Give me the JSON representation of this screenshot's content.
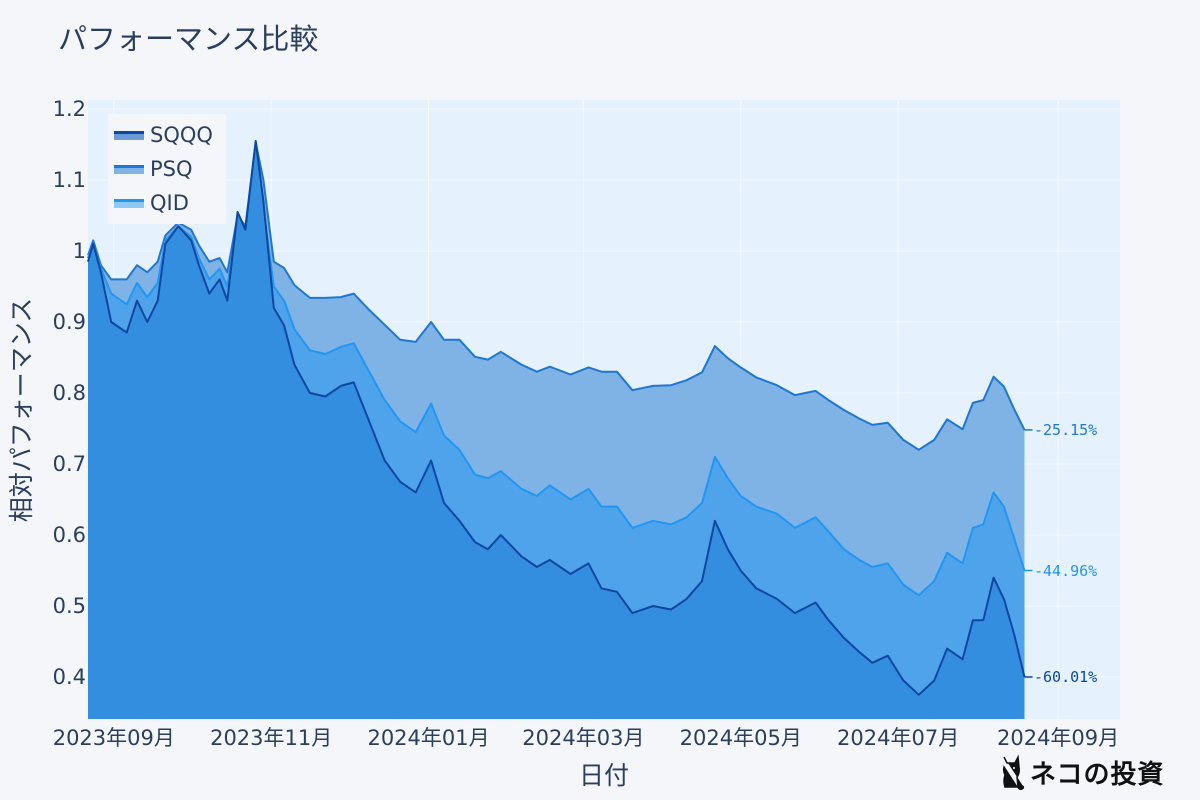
{
  "title": "パフォーマンス比較",
  "chart_data": {
    "type": "area",
    "title": "パフォーマンス比較",
    "xlabel": "日付",
    "ylabel": "相対パフォーマンス",
    "y_ticks": [
      "1.2",
      "1.1",
      "1",
      "0.9",
      "0.8",
      "0.7",
      "0.6",
      "0.5",
      "0.4"
    ],
    "x_ticks": [
      "2023年09月",
      "2023年11月",
      "2024年01月",
      "2024年03月",
      "2024年05月",
      "2024年07月",
      "2024年09月"
    ],
    "ylim": [
      0.342,
      1.213
    ],
    "xlim": [
      "2023-08-22",
      "2024-09-25"
    ],
    "grid": true,
    "legend_position": "top-left",
    "x": [
      "2023-08-22",
      "2023-08-24",
      "2023-08-27",
      "2023-08-31",
      "2023-09-06",
      "2023-09-10",
      "2023-09-14",
      "2023-09-18",
      "2023-09-21",
      "2023-09-26",
      "2023-10-01",
      "2023-10-04",
      "2023-10-08",
      "2023-10-12",
      "2023-10-15",
      "2023-10-19",
      "2023-10-22",
      "2023-10-26",
      "2023-10-29",
      "2023-11-02",
      "2023-11-06",
      "2023-11-10",
      "2023-11-16",
      "2023-11-22",
      "2023-11-28",
      "2023-12-03",
      "2023-12-09",
      "2023-12-15",
      "2023-12-21",
      "2023-12-27",
      "2024-01-02",
      "2024-01-07",
      "2024-01-13",
      "2024-01-19",
      "2024-01-24",
      "2024-01-29",
      "2024-02-06",
      "2024-02-12",
      "2024-02-17",
      "2024-02-25",
      "2024-03-03",
      "2024-03-08",
      "2024-03-14",
      "2024-03-20",
      "2024-03-28",
      "2024-04-04",
      "2024-04-10",
      "2024-04-16",
      "2024-04-21",
      "2024-04-26",
      "2024-05-01",
      "2024-05-07",
      "2024-05-15",
      "2024-05-22",
      "2024-05-30",
      "2024-06-04",
      "2024-06-10",
      "2024-06-16",
      "2024-06-21",
      "2024-06-27",
      "2024-07-03",
      "2024-07-09",
      "2024-07-15",
      "2024-07-20",
      "2024-07-26",
      "2024-07-30",
      "2024-08-03",
      "2024-08-07",
      "2024-08-11",
      "2024-08-15",
      "2024-08-19"
    ],
    "series": [
      {
        "name": "PSQ",
        "color": "#1f77d0",
        "fill": "#7fb3e6",
        "end_label": "-25.15%",
        "values": [
          0.994,
          1.015,
          0.98,
          0.96,
          0.96,
          0.98,
          0.97,
          0.985,
          1.022,
          1.04,
          1.03,
          1.008,
          0.985,
          0.99,
          0.97,
          1.05,
          1.035,
          1.153,
          1.1,
          0.985,
          0.976,
          0.952,
          0.934,
          0.934,
          0.935,
          0.94,
          0.917,
          0.896,
          0.875,
          0.872,
          0.9,
          0.875,
          0.875,
          0.851,
          0.847,
          0.858,
          0.84,
          0.83,
          0.837,
          0.826,
          0.836,
          0.83,
          0.83,
          0.804,
          0.81,
          0.811,
          0.818,
          0.829,
          0.866,
          0.849,
          0.836,
          0.822,
          0.811,
          0.797,
          0.803,
          0.79,
          0.776,
          0.764,
          0.755,
          0.758,
          0.734,
          0.72,
          0.734,
          0.763,
          0.749,
          0.786,
          0.79,
          0.823,
          0.809,
          0.777,
          0.748
        ]
      },
      {
        "name": "QID",
        "color": "#2196f3",
        "fill": "#4ea3ea",
        "end_label": "-44.96%",
        "values": [
          0.99,
          1.01,
          0.975,
          0.94,
          0.925,
          0.955,
          0.935,
          0.955,
          1.015,
          1.035,
          1.02,
          0.99,
          0.96,
          0.975,
          0.95,
          1.04,
          1.02,
          1.11,
          1.06,
          0.95,
          0.93,
          0.89,
          0.86,
          0.855,
          0.865,
          0.87,
          0.83,
          0.79,
          0.76,
          0.745,
          0.785,
          0.74,
          0.72,
          0.685,
          0.68,
          0.69,
          0.665,
          0.655,
          0.67,
          0.65,
          0.665,
          0.64,
          0.64,
          0.61,
          0.62,
          0.615,
          0.625,
          0.645,
          0.71,
          0.68,
          0.655,
          0.64,
          0.63,
          0.61,
          0.625,
          0.605,
          0.58,
          0.565,
          0.555,
          0.56,
          0.53,
          0.515,
          0.535,
          0.575,
          0.56,
          0.61,
          0.615,
          0.66,
          0.64,
          0.595,
          0.55
        ]
      },
      {
        "name": "SQQQ",
        "color": "#0d47a1",
        "fill": "#348ee0",
        "end_label": "-60.01%",
        "values": [
          0.985,
          1.01,
          0.97,
          0.9,
          0.885,
          0.93,
          0.9,
          0.93,
          1.01,
          1.035,
          1.015,
          0.98,
          0.94,
          0.96,
          0.93,
          1.055,
          1.03,
          1.155,
          1.07,
          0.92,
          0.895,
          0.84,
          0.8,
          0.795,
          0.81,
          0.815,
          0.76,
          0.705,
          0.675,
          0.66,
          0.705,
          0.645,
          0.62,
          0.59,
          0.58,
          0.6,
          0.57,
          0.555,
          0.565,
          0.545,
          0.56,
          0.525,
          0.52,
          0.49,
          0.5,
          0.495,
          0.51,
          0.535,
          0.62,
          0.58,
          0.55,
          0.525,
          0.51,
          0.49,
          0.505,
          0.48,
          0.455,
          0.435,
          0.42,
          0.43,
          0.395,
          0.375,
          0.395,
          0.44,
          0.425,
          0.48,
          0.48,
          0.54,
          0.51,
          0.46,
          0.4
        ]
      }
    ]
  },
  "legend": {
    "items": [
      {
        "label": "SQQQ",
        "line": "#0d47a1",
        "fill": "#6d9bd8"
      },
      {
        "label": "PSQ",
        "line": "#1f77d0",
        "fill": "#7fb3e6"
      },
      {
        "label": "QID",
        "line": "#2196f3",
        "fill": "#8ec8f5"
      }
    ]
  },
  "end_labels": [
    {
      "text": "-25.15%",
      "color": "#1f77d0"
    },
    {
      "text": "-44.96%",
      "color": "#2196f3"
    },
    {
      "text": "-60.01%",
      "color": "#0d47a1"
    }
  ],
  "watermark": {
    "text": "ネコの投資"
  }
}
